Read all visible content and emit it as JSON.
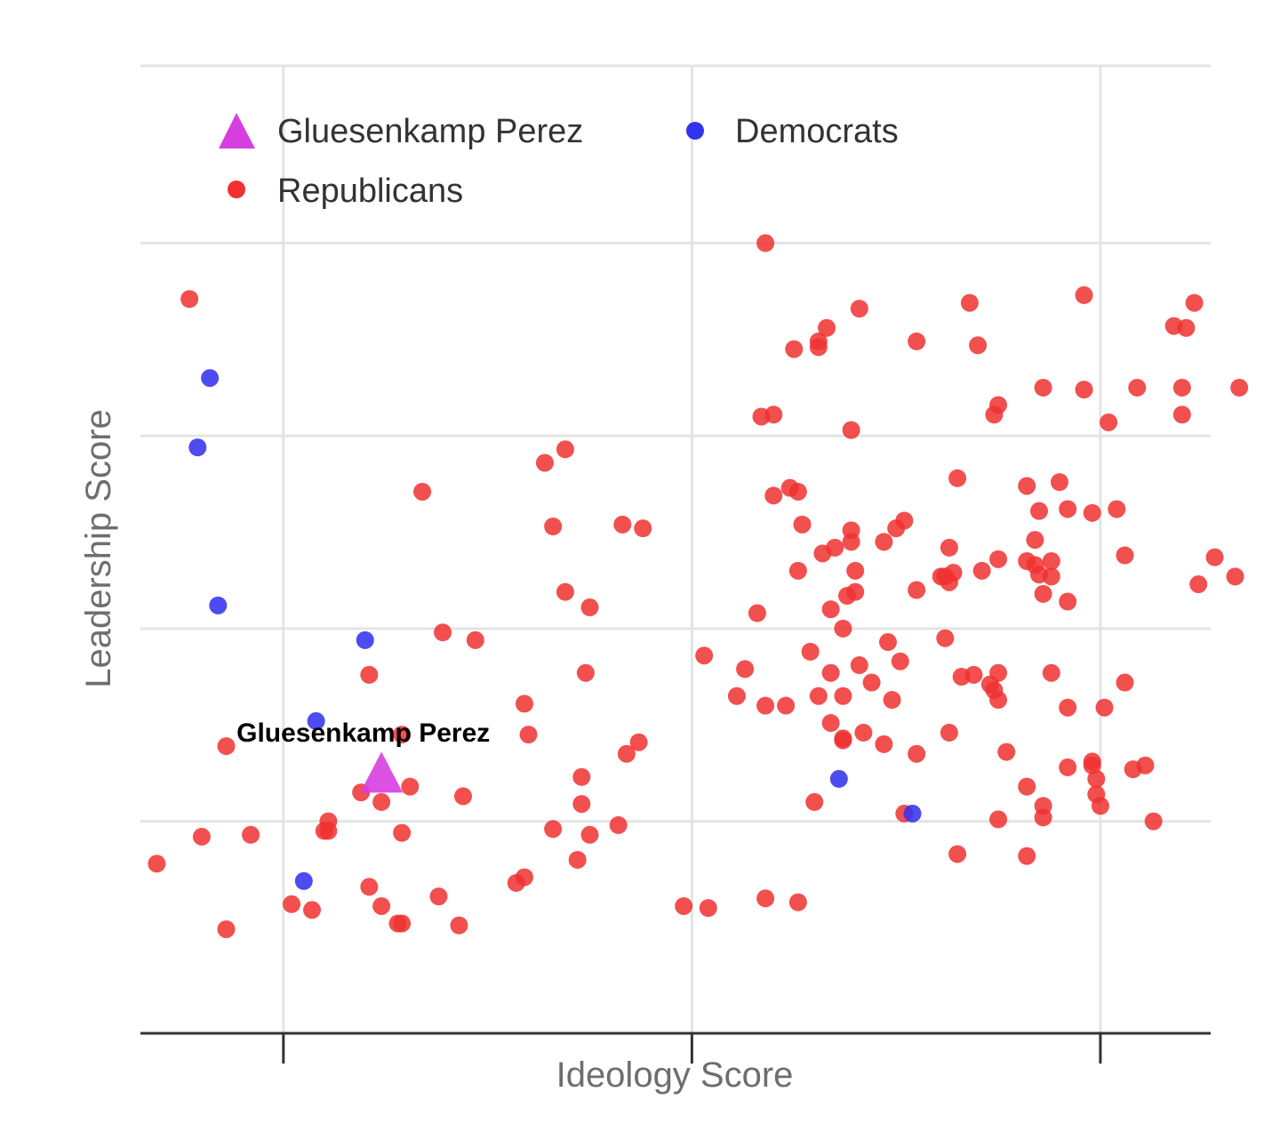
{
  "chart_data": {
    "type": "scatter",
    "title": "",
    "xlabel": "Ideology Score",
    "ylabel": "Leadership Score",
    "xlim": [
      -0.35,
      2.27
    ],
    "ylim": [
      -0.1,
      4.92
    ],
    "x_ticks": [
      0,
      1,
      2
    ],
    "y_gridlines": [
      1,
      2,
      3,
      4
    ],
    "grid": true,
    "legend_position": "top-left",
    "colors": {
      "republicans": "#f03030",
      "democrats": "#3333ee",
      "highlight": "#d63ee0",
      "grid": "#e4e4e4",
      "axis": "#333333"
    },
    "legend": {
      "highlight": "Gluesenkamp Perez",
      "democrats": "Democrats",
      "republicans": "Republicans"
    },
    "annotations": [
      {
        "text": "Gluesenkamp Perez",
        "x": 0.24,
        "y": 1.27
      }
    ],
    "series": [
      {
        "name": "Gluesenkamp Perez",
        "marker": "triangle",
        "points": [
          [
            0.24,
            1.25
          ]
        ]
      },
      {
        "name": "Democrats",
        "marker": "circle",
        "points": [
          [
            -0.18,
            3.3
          ],
          [
            -0.21,
            2.94
          ],
          [
            -0.16,
            2.12
          ],
          [
            0.2,
            1.94
          ],
          [
            0.08,
            1.52
          ],
          [
            0.05,
            0.69
          ],
          [
            1.36,
            1.22
          ],
          [
            1.54,
            1.04
          ]
        ]
      },
      {
        "name": "Republicans",
        "marker": "circle",
        "points": [
          [
            -0.23,
            3.71
          ],
          [
            0.34,
            2.71
          ],
          [
            0.64,
            2.86
          ],
          [
            0.69,
            2.93
          ],
          [
            0.66,
            2.53
          ],
          [
            0.83,
            2.54
          ],
          [
            0.88,
            2.52
          ],
          [
            0.69,
            2.19
          ],
          [
            0.75,
            2.11
          ],
          [
            0.39,
            1.98
          ],
          [
            0.47,
            1.94
          ],
          [
            0.21,
            1.76
          ],
          [
            0.74,
            1.77
          ],
          [
            0.59,
            1.61
          ],
          [
            0.6,
            1.45
          ],
          [
            -0.14,
            1.39
          ],
          [
            0.29,
            1.45
          ],
          [
            0.19,
            1.15
          ],
          [
            0.24,
            1.1
          ],
          [
            0.31,
            1.18
          ],
          [
            0.44,
            1.13
          ],
          [
            0.73,
            1.23
          ],
          [
            0.73,
            1.09
          ],
          [
            0.84,
            1.35
          ],
          [
            0.87,
            1.41
          ],
          [
            0.11,
            1.0
          ],
          [
            0.11,
            0.95
          ],
          [
            0.1,
            0.95
          ],
          [
            -0.2,
            0.92
          ],
          [
            -0.08,
            0.93
          ],
          [
            -0.31,
            0.78
          ],
          [
            0.29,
            0.94
          ],
          [
            0.66,
            0.96
          ],
          [
            0.75,
            0.93
          ],
          [
            0.82,
            0.98
          ],
          [
            0.72,
            0.8
          ],
          [
            0.59,
            0.71
          ],
          [
            0.57,
            0.68
          ],
          [
            0.21,
            0.66
          ],
          [
            0.38,
            0.61
          ],
          [
            0.02,
            0.57
          ],
          [
            0.07,
            0.54
          ],
          [
            0.24,
            0.56
          ],
          [
            0.28,
            0.47
          ],
          [
            0.29,
            0.47
          ],
          [
            0.43,
            0.46
          ],
          [
            -0.14,
            0.44
          ],
          [
            0.98,
            0.56
          ],
          [
            1.04,
            0.55
          ],
          [
            1.18,
            0.6
          ],
          [
            1.26,
            0.58
          ],
          [
            1.18,
            4.0
          ],
          [
            1.41,
            3.66
          ],
          [
            1.68,
            3.69
          ],
          [
            1.96,
            3.73
          ],
          [
            2.23,
            3.69
          ],
          [
            1.33,
            3.56
          ],
          [
            1.31,
            3.49
          ],
          [
            1.31,
            3.46
          ],
          [
            1.25,
            3.45
          ],
          [
            1.55,
            3.49
          ],
          [
            1.7,
            3.47
          ],
          [
            2.18,
            3.57
          ],
          [
            2.21,
            3.56
          ],
          [
            1.86,
            3.25
          ],
          [
            1.96,
            3.24
          ],
          [
            2.02,
            3.07
          ],
          [
            2.09,
            3.25
          ],
          [
            2.2,
            3.25
          ],
          [
            2.34,
            3.25
          ],
          [
            1.17,
            3.1
          ],
          [
            1.2,
            3.11
          ],
          [
            1.39,
            3.03
          ],
          [
            2.2,
            3.11
          ],
          [
            1.74,
            3.11
          ],
          [
            1.75,
            3.16
          ],
          [
            1.65,
            2.78
          ],
          [
            1.9,
            2.76
          ],
          [
            1.26,
            2.71
          ],
          [
            1.2,
            2.69
          ],
          [
            1.24,
            2.73
          ],
          [
            1.82,
            2.74
          ],
          [
            1.85,
            2.61
          ],
          [
            1.92,
            2.62
          ],
          [
            1.98,
            2.6
          ],
          [
            2.04,
            2.62
          ],
          [
            1.27,
            2.54
          ],
          [
            1.39,
            2.51
          ],
          [
            1.52,
            2.56
          ],
          [
            1.5,
            2.52
          ],
          [
            1.39,
            2.45
          ],
          [
            1.47,
            2.45
          ],
          [
            1.32,
            2.39
          ],
          [
            1.35,
            2.42
          ],
          [
            1.84,
            2.46
          ],
          [
            1.88,
            2.35
          ],
          [
            1.82,
            2.35
          ],
          [
            1.84,
            2.33
          ],
          [
            1.63,
            2.42
          ],
          [
            1.75,
            2.36
          ],
          [
            2.06,
            2.38
          ],
          [
            2.28,
            2.37
          ],
          [
            1.26,
            2.3
          ],
          [
            1.4,
            2.3
          ],
          [
            1.64,
            2.29
          ],
          [
            1.61,
            2.27
          ],
          [
            1.85,
            2.28
          ],
          [
            1.88,
            2.27
          ],
          [
            2.24,
            2.23
          ],
          [
            1.55,
            2.2
          ],
          [
            1.62,
            2.27
          ],
          [
            1.63,
            2.24
          ],
          [
            1.71,
            2.3
          ],
          [
            1.86,
            2.18
          ],
          [
            2.33,
            2.27
          ],
          [
            1.16,
            2.08
          ],
          [
            1.38,
            2.17
          ],
          [
            1.4,
            2.19
          ],
          [
            1.34,
            2.1
          ],
          [
            1.37,
            2.0
          ],
          [
            1.92,
            2.14
          ],
          [
            1.48,
            1.93
          ],
          [
            1.62,
            1.95
          ],
          [
            1.29,
            1.88
          ],
          [
            1.41,
            1.81
          ],
          [
            1.34,
            1.77
          ],
          [
            1.66,
            1.75
          ],
          [
            1.69,
            1.76
          ],
          [
            1.73,
            1.71
          ],
          [
            1.75,
            1.77
          ],
          [
            1.75,
            1.63
          ],
          [
            1.74,
            1.68
          ],
          [
            1.51,
            1.83
          ],
          [
            1.88,
            1.77
          ],
          [
            2.06,
            1.72
          ],
          [
            1.03,
            1.86
          ],
          [
            1.13,
            1.79
          ],
          [
            1.18,
            1.6
          ],
          [
            1.31,
            1.65
          ],
          [
            1.37,
            1.65
          ],
          [
            1.49,
            1.63
          ],
          [
            1.44,
            1.72
          ],
          [
            1.23,
            1.6
          ],
          [
            1.34,
            1.51
          ],
          [
            1.11,
            1.65
          ],
          [
            1.92,
            1.59
          ],
          [
            2.01,
            1.59
          ],
          [
            1.63,
            1.46
          ],
          [
            1.55,
            1.35
          ],
          [
            1.77,
            1.36
          ],
          [
            1.37,
            1.42
          ],
          [
            1.47,
            1.4
          ],
          [
            1.42,
            1.46
          ],
          [
            1.37,
            1.43
          ],
          [
            1.82,
            1.18
          ],
          [
            1.92,
            1.28
          ],
          [
            1.98,
            1.31
          ],
          [
            1.98,
            1.29
          ],
          [
            1.86,
            1.08
          ],
          [
            1.65,
            0.83
          ],
          [
            1.82,
            0.82
          ],
          [
            1.86,
            1.02
          ],
          [
            1.75,
            1.01
          ],
          [
            1.99,
            1.14
          ],
          [
            1.99,
            1.22
          ],
          [
            2.11,
            1.29
          ],
          [
            2.13,
            1.0
          ],
          [
            2.08,
            1.27
          ],
          [
            1.52,
            1.04
          ],
          [
            1.3,
            1.1
          ],
          [
            2.0,
            1.08
          ]
        ]
      }
    ]
  }
}
